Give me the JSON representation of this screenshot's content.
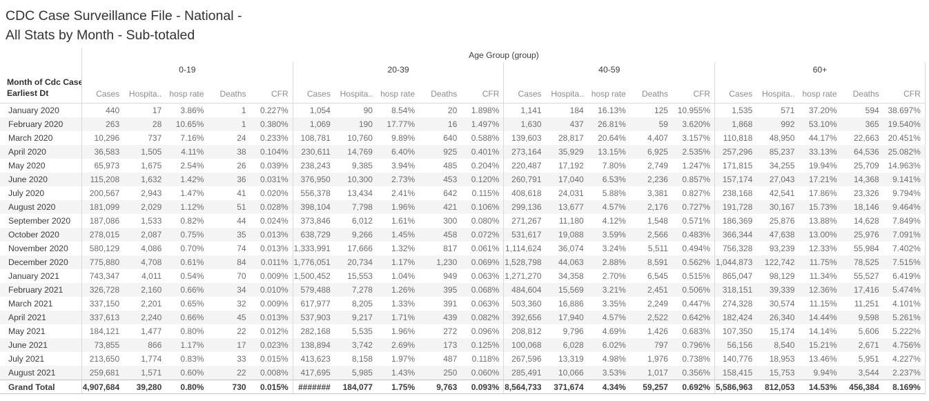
{
  "title": {
    "line1": "CDC Case Surveillance File - National -",
    "line2": "All Stats by Month - Sub-totaled"
  },
  "table": {
    "age_group_header": "Age Group (group)",
    "row_header_line1": "Month of Cdc Case",
    "row_header_line2": "Earliest Dt"
  },
  "colors": {
    "band": "#f4f4f5",
    "grid_line": "#d9d9d9",
    "total_line": "#c4c4c4",
    "title_text": "#323232",
    "data_text": "#6d6d70",
    "column_header_text": "#8c8c8e"
  },
  "chart_data": {
    "type": "table",
    "title": "CDC Case Surveillance File - National - All Stats by Month - Sub-totaled",
    "column_group_header": "Age Group (group)",
    "column_groups": [
      "0-19",
      "20-39",
      "40-59",
      "60+"
    ],
    "metrics_per_group": [
      "Cases",
      "Hospita..",
      "hosp rate",
      "Deaths",
      "CFR"
    ],
    "row_dimension": "Month of Cdc Case Earliest Dt",
    "rows": [
      {
        "label": "January 2020",
        "values": [
          "440",
          "17",
          "3.86%",
          "1",
          "0.227%",
          "1,054",
          "90",
          "8.54%",
          "20",
          "1.898%",
          "1,141",
          "184",
          "16.13%",
          "125",
          "10.955%",
          "1,535",
          "571",
          "37.20%",
          "594",
          "38.697%"
        ]
      },
      {
        "label": "February 2020",
        "values": [
          "263",
          "28",
          "10.65%",
          "1",
          "0.380%",
          "1,069",
          "190",
          "17.77%",
          "16",
          "1.497%",
          "1,630",
          "437",
          "26.81%",
          "59",
          "3.620%",
          "1,868",
          "992",
          "53.10%",
          "365",
          "19.540%"
        ]
      },
      {
        "label": "March 2020",
        "values": [
          "10,296",
          "737",
          "7.16%",
          "24",
          "0.233%",
          "108,781",
          "10,760",
          "9.89%",
          "640",
          "0.588%",
          "139,603",
          "28,817",
          "20.64%",
          "4,407",
          "3.157%",
          "110,818",
          "48,950",
          "44.17%",
          "22,663",
          "20.451%"
        ]
      },
      {
        "label": "April 2020",
        "values": [
          "36,583",
          "1,505",
          "4.11%",
          "38",
          "0.104%",
          "230,611",
          "14,769",
          "6.40%",
          "925",
          "0.401%",
          "273,164",
          "35,929",
          "13.15%",
          "6,925",
          "2.535%",
          "257,296",
          "85,237",
          "33.13%",
          "64,536",
          "25.082%"
        ]
      },
      {
        "label": "May 2020",
        "values": [
          "65,973",
          "1,675",
          "2.54%",
          "26",
          "0.039%",
          "238,243",
          "9,385",
          "3.94%",
          "485",
          "0.204%",
          "220,487",
          "17,192",
          "7.80%",
          "2,749",
          "1.247%",
          "171,815",
          "34,255",
          "19.94%",
          "25,709",
          "14.963%"
        ]
      },
      {
        "label": "June 2020",
        "values": [
          "115,208",
          "1,632",
          "1.42%",
          "36",
          "0.031%",
          "376,950",
          "10,300",
          "2.73%",
          "453",
          "0.120%",
          "260,791",
          "17,040",
          "6.53%",
          "2,236",
          "0.857%",
          "157,174",
          "27,043",
          "17.21%",
          "14,368",
          "9.141%"
        ]
      },
      {
        "label": "July 2020",
        "values": [
          "200,567",
          "2,943",
          "1.47%",
          "41",
          "0.020%",
          "556,378",
          "13,434",
          "2.41%",
          "642",
          "0.115%",
          "408,618",
          "24,031",
          "5.88%",
          "3,381",
          "0.827%",
          "238,168",
          "42,541",
          "17.86%",
          "23,326",
          "9.794%"
        ]
      },
      {
        "label": "August 2020",
        "values": [
          "181,099",
          "2,029",
          "1.12%",
          "51",
          "0.028%",
          "398,104",
          "7,798",
          "1.96%",
          "421",
          "0.106%",
          "299,136",
          "13,677",
          "4.57%",
          "2,176",
          "0.727%",
          "191,728",
          "30,167",
          "15.73%",
          "18,146",
          "9.464%"
        ]
      },
      {
        "label": "September 2020",
        "values": [
          "187,086",
          "1,533",
          "0.82%",
          "44",
          "0.024%",
          "373,846",
          "6,012",
          "1.61%",
          "300",
          "0.080%",
          "271,267",
          "11,180",
          "4.12%",
          "1,548",
          "0.571%",
          "186,369",
          "25,876",
          "13.88%",
          "14,628",
          "7.849%"
        ]
      },
      {
        "label": "October 2020",
        "values": [
          "278,015",
          "2,087",
          "0.75%",
          "35",
          "0.013%",
          "638,729",
          "9,266",
          "1.45%",
          "458",
          "0.072%",
          "531,617",
          "19,088",
          "3.59%",
          "2,566",
          "0.483%",
          "366,344",
          "47,638",
          "13.00%",
          "25,976",
          "7.091%"
        ]
      },
      {
        "label": "November 2020",
        "values": [
          "580,129",
          "4,086",
          "0.70%",
          "74",
          "0.013%",
          "1,333,991",
          "17,666",
          "1.32%",
          "817",
          "0.061%",
          "1,114,624",
          "36,074",
          "3.24%",
          "5,511",
          "0.494%",
          "756,328",
          "93,239",
          "12.33%",
          "55,984",
          "7.402%"
        ]
      },
      {
        "label": "December 2020",
        "values": [
          "775,880",
          "4,708",
          "0.61%",
          "84",
          "0.011%",
          "1,776,051",
          "20,734",
          "1.17%",
          "1,230",
          "0.069%",
          "1,528,798",
          "44,063",
          "2.88%",
          "8,591",
          "0.562%",
          "1,044,873",
          "122,742",
          "11.75%",
          "78,525",
          "7.515%"
        ]
      },
      {
        "label": "January 2021",
        "values": [
          "743,347",
          "4,011",
          "0.54%",
          "70",
          "0.009%",
          "1,500,452",
          "15,553",
          "1.04%",
          "949",
          "0.063%",
          "1,271,270",
          "34,358",
          "2.70%",
          "6,545",
          "0.515%",
          "865,047",
          "98,129",
          "11.34%",
          "55,527",
          "6.419%"
        ]
      },
      {
        "label": "February 2021",
        "values": [
          "326,728",
          "2,160",
          "0.66%",
          "34",
          "0.010%",
          "579,488",
          "7,278",
          "1.26%",
          "395",
          "0.068%",
          "484,604",
          "15,569",
          "3.21%",
          "2,451",
          "0.506%",
          "318,151",
          "39,339",
          "12.36%",
          "17,416",
          "5.474%"
        ]
      },
      {
        "label": "March 2021",
        "values": [
          "337,150",
          "2,201",
          "0.65%",
          "32",
          "0.009%",
          "617,977",
          "8,205",
          "1.33%",
          "391",
          "0.063%",
          "503,360",
          "16,886",
          "3.35%",
          "2,249",
          "0.447%",
          "274,328",
          "30,574",
          "11.15%",
          "11,251",
          "4.101%"
        ]
      },
      {
        "label": "April 2021",
        "values": [
          "337,613",
          "2,240",
          "0.66%",
          "45",
          "0.013%",
          "537,903",
          "9,217",
          "1.71%",
          "439",
          "0.082%",
          "392,656",
          "17,940",
          "4.57%",
          "2,522",
          "0.642%",
          "182,424",
          "26,340",
          "14.44%",
          "9,598",
          "5.261%"
        ]
      },
      {
        "label": "May 2021",
        "values": [
          "184,121",
          "1,477",
          "0.80%",
          "22",
          "0.012%",
          "282,168",
          "5,535",
          "1.96%",
          "272",
          "0.096%",
          "208,812",
          "9,796",
          "4.69%",
          "1,426",
          "0.683%",
          "107,350",
          "15,174",
          "14.14%",
          "5,606",
          "5.222%"
        ]
      },
      {
        "label": "June 2021",
        "values": [
          "73,855",
          "866",
          "1.17%",
          "17",
          "0.023%",
          "138,894",
          "3,742",
          "2.69%",
          "173",
          "0.125%",
          "100,068",
          "6,028",
          "6.02%",
          "797",
          "0.796%",
          "56,156",
          "8,540",
          "15.21%",
          "2,671",
          "4.756%"
        ]
      },
      {
        "label": "July 2021",
        "values": [
          "213,650",
          "1,774",
          "0.83%",
          "33",
          "0.015%",
          "413,623",
          "8,158",
          "1.97%",
          "487",
          "0.118%",
          "267,596",
          "13,319",
          "4.98%",
          "1,976",
          "0.738%",
          "140,776",
          "18,953",
          "13.46%",
          "5,951",
          "4.227%"
        ]
      },
      {
        "label": "August 2021",
        "values": [
          "259,681",
          "1,571",
          "0.60%",
          "22",
          "0.008%",
          "417,695",
          "5,985",
          "1.43%",
          "250",
          "0.060%",
          "285,491",
          "10,066",
          "3.53%",
          "1,017",
          "0.356%",
          "158,415",
          "15,753",
          "9.94%",
          "3,544",
          "2.237%"
        ]
      }
    ],
    "grand_total": {
      "label": "Grand Total",
      "values": [
        "4,907,684",
        "39,280",
        "0.80%",
        "730",
        "0.015%",
        "#######",
        "184,077",
        "1.75%",
        "9,763",
        "0.093%",
        "8,564,733",
        "371,674",
        "4.34%",
        "59,257",
        "0.692%",
        "5,586,963",
        "812,053",
        "14.53%",
        "456,384",
        "8.169%"
      ]
    }
  }
}
